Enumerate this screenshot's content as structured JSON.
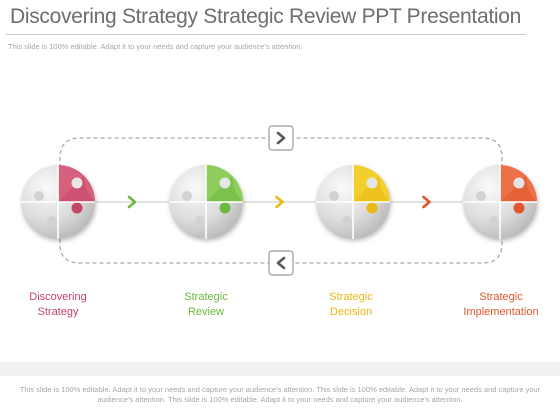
{
  "title": "Discovering Strategy Strategic Review PPT Presentation",
  "subtitle": "This slide is 100% editable. Adapt it to your needs and capture your audience's attention.",
  "stages": [
    {
      "line1": "Discovering",
      "line2": "Strategy",
      "color": "#c44565",
      "light": "#d7607d"
    },
    {
      "line1": "Strategic",
      "line2": "Review",
      "color": "#6db83f",
      "light": "#8ccd5c"
    },
    {
      "line1": "Strategic",
      "line2": "Decision",
      "color": "#e8b812",
      "light": "#f3cf2e"
    },
    {
      "line1": "Strategic",
      "line2": "Implementation",
      "color": "#e0552b",
      "light": "#ec7149"
    }
  ],
  "icons": {
    "forward": "chevron-right-icon",
    "back": "chevron-left-icon"
  },
  "footer": "This slide is 100% editable. Adapt it to your needs and capture your audience's attention. This slide is 100% editable. Adapt it to your needs and capture your audience's attention. This slide is 100% editable. Adapt it to your needs and capture your audience's attention."
}
